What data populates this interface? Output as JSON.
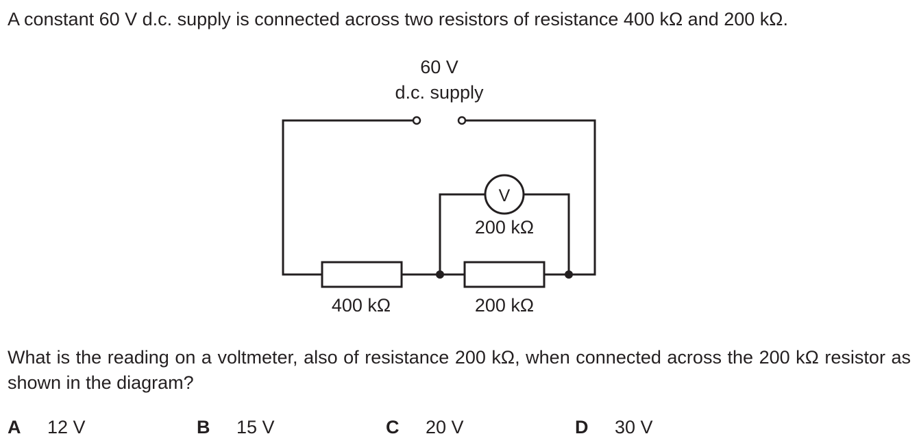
{
  "question": {
    "intro": "A constant 60 V d.c. supply is connected across two resistors of resistance 400 kΩ and 200 kΩ.",
    "prompt": "What is the reading on a voltmeter, also of resistance 200 kΩ, when connected across the 200 kΩ resistor as shown in the diagram?"
  },
  "diagram": {
    "supply_voltage": "60 V",
    "supply_label": "d.c. supply",
    "voltmeter_symbol": "V",
    "voltmeter_resistance": "200 kΩ",
    "resistor_1_label": "400 kΩ",
    "resistor_2_label": "200 kΩ"
  },
  "options": [
    {
      "letter": "A",
      "value": "12 V"
    },
    {
      "letter": "B",
      "value": "15 V"
    },
    {
      "letter": "C",
      "value": "20 V"
    },
    {
      "letter": "D",
      "value": "30 V"
    }
  ]
}
